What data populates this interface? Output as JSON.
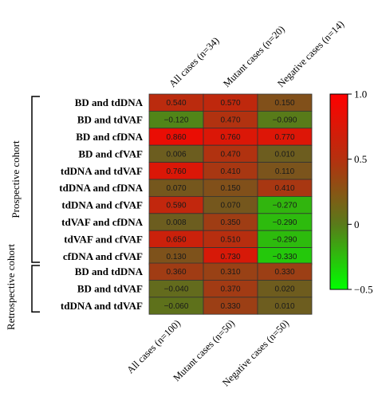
{
  "chart_data": {
    "type": "heatmap",
    "color_scale": {
      "min": -0.5,
      "max": 1.0,
      "low_color": "#00ff00",
      "mid_color": "#6b5e1f",
      "high_color": "#ff0000"
    },
    "colorbar_ticks": [
      "1.0",
      "0.5",
      "0",
      "−0.5"
    ],
    "colorbar_tick_values": [
      1.0,
      0.5,
      0,
      -0.5
    ],
    "panels": [
      {
        "cohort_label": "Prospective cohort",
        "columns": [
          "All cases (n=34)",
          "Mutant cases (n=20)",
          "Negative cases (n=14)"
        ],
        "rows": [
          "BD and tdDNA",
          "BD and tdVAF",
          "BD and cfDNA",
          "BD and cfVAF",
          "tdDNA and tdVAF",
          "tdDNA and cfDNA",
          "tdDNA and cfVAF",
          "tdVAF and cfDNA",
          "tdVAF and cfVAF",
          "cfDNA and cfVAF"
        ],
        "values": [
          [
            0.54,
            0.57,
            0.15
          ],
          [
            -0.12,
            0.47,
            -0.09
          ],
          [
            0.86,
            0.76,
            0.77
          ],
          [
            0.006,
            0.47,
            0.01
          ],
          [
            0.76,
            0.41,
            0.11
          ],
          [
            0.07,
            0.15,
            0.41
          ],
          [
            0.59,
            0.07,
            -0.27
          ],
          [
            0.008,
            0.35,
            -0.29
          ],
          [
            0.65,
            0.51,
            -0.29
          ],
          [
            0.13,
            0.73,
            -0.33
          ]
        ],
        "labels": [
          [
            "0.540",
            "0.570",
            "0.150"
          ],
          [
            "−0.120",
            "0.470",
            "−0.090"
          ],
          [
            "0.860",
            "0.760",
            "0.770"
          ],
          [
            "0.006",
            "0.470",
            "0.010"
          ],
          [
            "0.760",
            "0.410",
            "0.110"
          ],
          [
            "0.070",
            "0.150",
            "0.410"
          ],
          [
            "0.590",
            "0.070",
            "−0.270"
          ],
          [
            "0.008",
            "0.350",
            "−0.290"
          ],
          [
            "0.650",
            "0.510",
            "−0.290"
          ],
          [
            "0.130",
            "0.730",
            "−0.330"
          ]
        ]
      },
      {
        "cohort_label": "Retrospective cohort",
        "columns": [
          "All cases (n=100)",
          "Mutant cases (n=50)",
          "Negative cases (n=50)"
        ],
        "rows": [
          "BD and tdDNA",
          "BD and tdVAF",
          "tdDNA and tdVAF"
        ],
        "values": [
          [
            0.36,
            0.31,
            0.33
          ],
          [
            -0.04,
            0.37,
            0.02
          ],
          [
            -0.06,
            0.33,
            0.01
          ]
        ],
        "labels": [
          [
            "0.360",
            "0.310",
            "0.330"
          ],
          [
            "−0.040",
            "0.370",
            "0.020"
          ],
          [
            "−0.060",
            "0.330",
            "0.010"
          ]
        ]
      }
    ]
  }
}
